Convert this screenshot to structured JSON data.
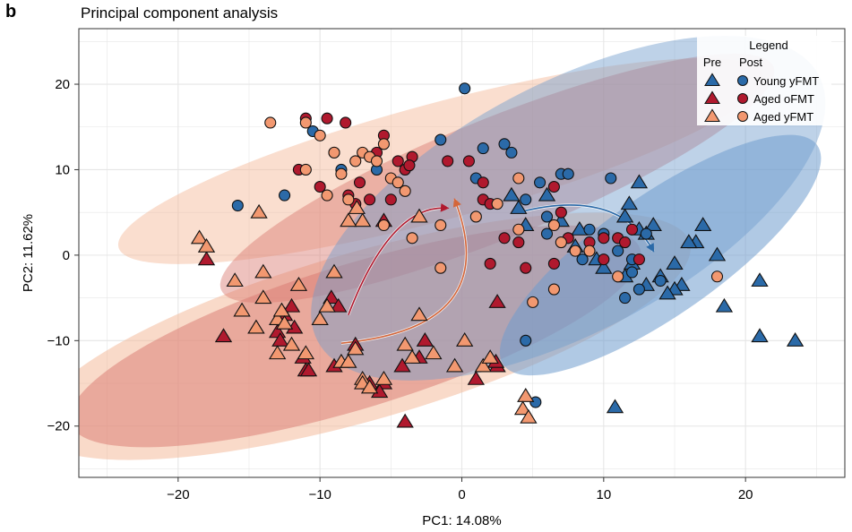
{
  "panel_letter": "b",
  "colors": {
    "young": "#2b6aa8",
    "aged_ofmt": "#b0192e",
    "aged_yfmt": "#f29870",
    "ellipse_young": "#6f9ccd",
    "ellipse_aged_ofmt": "#d9786f",
    "ellipse_aged_yfmt": "#f4b594",
    "grid": "#e6e6e6",
    "panel_border": "#333333"
  },
  "chart_data": {
    "type": "scatter",
    "title": "Principal component analysis",
    "xlabel": "PC1: 14.08%",
    "ylabel": "PC2: 11.62%",
    "xlim": [
      -27,
      27
    ],
    "ylim": [
      -26,
      26.5
    ],
    "xticks": [
      -20,
      -10,
      0,
      10,
      20
    ],
    "yticks": [
      -20,
      -10,
      0,
      10,
      20
    ],
    "xtick_labels": [
      "−20",
      "−10",
      "0",
      "10",
      "20"
    ],
    "ytick_labels": [
      "−20",
      "−10",
      "0",
      "10",
      "20"
    ],
    "grid": true,
    "legend": {
      "title": "Legend",
      "col_pre": "Pre",
      "col_post": "Post",
      "position": "top-right",
      "entries": [
        {
          "label": "Young yFMT",
          "group": "young"
        },
        {
          "label": "Aged oFMT",
          "group": "aged_ofmt"
        },
        {
          "label": "Aged yFMT",
          "group": "aged_yfmt"
        }
      ]
    },
    "ellipses": [
      {
        "group": "aged_yfmt",
        "phase": "pre",
        "cx": -7.0,
        "cy": -9.5,
        "rx": 24.0,
        "ry": 9.8,
        "angle": -16,
        "opacity": 0.5
      },
      {
        "group": "aged_yfmt",
        "phase": "post",
        "cx": -1.5,
        "cy": 11.0,
        "rx": 23.5,
        "ry": 6.8,
        "angle": -15,
        "opacity": 0.45
      },
      {
        "group": "aged_ofmt",
        "phase": "post",
        "cx": 2.5,
        "cy": 9.0,
        "rx": 21.0,
        "ry": 7.0,
        "angle": -22,
        "opacity": 0.45
      },
      {
        "group": "aged_ofmt",
        "phase": "pre",
        "cx": -7.5,
        "cy": -9.5,
        "rx": 21.0,
        "ry": 8.4,
        "angle": -17,
        "opacity": 0.5
      },
      {
        "group": "young",
        "phase": "post",
        "cx": 7.5,
        "cy": 5.5,
        "rx": 20.0,
        "ry": 14.5,
        "angle": -28,
        "opacity": 0.45
      },
      {
        "group": "young",
        "phase": "pre",
        "cx": 14.0,
        "cy": 0.0,
        "rx": 13.5,
        "ry": 7.0,
        "angle": -35,
        "opacity": 0.55
      }
    ],
    "arrows": [
      {
        "group": "aged_ofmt",
        "from": [
          -8.0,
          -7.0
        ],
        "ctrl": [
          -5.0,
          6.0
        ],
        "to": [
          -1.0,
          5.5
        ]
      },
      {
        "group": "aged_yfmt",
        "from": [
          -8.5,
          -10.3
        ],
        "ctrl": [
          3.0,
          -8.5
        ],
        "to": [
          -0.5,
          6.5
        ]
      },
      {
        "group": "young",
        "from": [
          4.0,
          5.0
        ],
        "ctrl": [
          11.0,
          8.0
        ],
        "to": [
          13.5,
          0.5
        ]
      }
    ],
    "series": [
      {
        "name": "Young yFMT",
        "group": "young",
        "phase": "pre",
        "marker": "triangle",
        "points": [
          [
            6.0,
            7.0
          ],
          [
            7.0,
            4.0
          ],
          [
            8.3,
            3.0
          ],
          [
            8.0,
            1.0
          ],
          [
            9.5,
            -0.5
          ],
          [
            10.0,
            -1.5
          ],
          [
            11.8,
            6.0
          ],
          [
            12.5,
            8.5
          ],
          [
            11.5,
            4.5
          ],
          [
            12.5,
            3.0
          ],
          [
            13.0,
            2.5
          ],
          [
            13.5,
            3.5
          ],
          [
            14.0,
            -2.5
          ],
          [
            15.0,
            -1.0
          ],
          [
            16.5,
            1.5
          ],
          [
            17.0,
            3.5
          ],
          [
            16.0,
            1.5
          ],
          [
            18.0,
            0.0
          ],
          [
            15.5,
            -3.5
          ],
          [
            15.0,
            -4.0
          ],
          [
            14.5,
            -4.5
          ],
          [
            13.0,
            -3.5
          ],
          [
            12.0,
            -1.0
          ],
          [
            11.5,
            -2.5
          ],
          [
            18.5,
            -6.0
          ],
          [
            21.0,
            -3.0
          ],
          [
            21.0,
            -9.5
          ],
          [
            23.5,
            -10.0
          ],
          [
            10.8,
            -17.8
          ],
          [
            4.0,
            5.5
          ],
          [
            4.5,
            3.5
          ],
          [
            3.5,
            7.0
          ]
        ]
      },
      {
        "name": "Young yFMT",
        "group": "young",
        "phase": "post",
        "marker": "circle",
        "points": [
          [
            0.2,
            19.5
          ],
          [
            -1.5,
            13.5
          ],
          [
            1.5,
            12.5
          ],
          [
            3.0,
            13.0
          ],
          [
            3.5,
            12.0
          ],
          [
            -10.5,
            14.5
          ],
          [
            -12.5,
            7.0
          ],
          [
            -15.8,
            5.8
          ],
          [
            -8.5,
            10.0
          ],
          [
            -6.0,
            10.0
          ],
          [
            1.0,
            9.0
          ],
          [
            4.5,
            6.5
          ],
          [
            5.5,
            8.5
          ],
          [
            7.0,
            9.5
          ],
          [
            7.5,
            9.5
          ],
          [
            10.5,
            9.0
          ],
          [
            6.0,
            4.5
          ],
          [
            9.0,
            3.0
          ],
          [
            10.0,
            2.5
          ],
          [
            11.0,
            0.5
          ],
          [
            12.0,
            -0.5
          ],
          [
            12.0,
            -2.0
          ],
          [
            12.5,
            -4.0
          ],
          [
            11.5,
            -5.0
          ],
          [
            13.0,
            2.5
          ],
          [
            14.0,
            -3.0
          ],
          [
            8.5,
            -0.5
          ],
          [
            6.0,
            2.5
          ],
          [
            4.5,
            -10.0
          ],
          [
            5.2,
            -17.2
          ]
        ]
      },
      {
        "name": "Aged oFMT",
        "group": "aged_ofmt",
        "phase": "pre",
        "marker": "triangle",
        "points": [
          [
            -18.0,
            -0.5
          ],
          [
            -16.8,
            -9.5
          ],
          [
            -14.5,
            -8.5
          ],
          [
            -13.0,
            -9.0
          ],
          [
            -12.8,
            -10.0
          ],
          [
            -12.5,
            -7.0
          ],
          [
            -12.0,
            -6.0
          ],
          [
            -11.8,
            -8.5
          ],
          [
            -11.2,
            -12.0
          ],
          [
            -11.0,
            -13.5
          ],
          [
            -10.8,
            -13.5
          ],
          [
            -9.2,
            -5.0
          ],
          [
            -8.7,
            -6.0
          ],
          [
            -9.0,
            -13.0
          ],
          [
            -7.5,
            -10.5
          ],
          [
            -6.5,
            -15.0
          ],
          [
            -5.5,
            -15.0
          ],
          [
            -5.8,
            -16.0
          ],
          [
            -4.2,
            -13.0
          ],
          [
            -4.0,
            -19.5
          ],
          [
            -3.0,
            -12.0
          ],
          [
            -2.6,
            -10.0
          ],
          [
            -5.5,
            4.0
          ],
          [
            1.0,
            -14.5
          ],
          [
            2.5,
            -5.5
          ],
          [
            2.5,
            -13.0
          ],
          [
            2.4,
            -12.5
          ]
        ]
      },
      {
        "name": "Aged oFMT",
        "group": "aged_ofmt",
        "phase": "post",
        "marker": "circle",
        "points": [
          [
            -11.0,
            16.0
          ],
          [
            -9.5,
            16.0
          ],
          [
            -8.2,
            15.5
          ],
          [
            -7.2,
            8.5
          ],
          [
            -8.0,
            7.0
          ],
          [
            -7.5,
            6.0
          ],
          [
            -6.5,
            6.5
          ],
          [
            -5.0,
            6.5
          ],
          [
            -6.0,
            12.0
          ],
          [
            -5.5,
            14.0
          ],
          [
            -4.5,
            11.0
          ],
          [
            -4.0,
            10.0
          ],
          [
            -3.5,
            11.5
          ],
          [
            -3.7,
            10.5
          ],
          [
            -1.0,
            11.0
          ],
          [
            0.5,
            11.0
          ],
          [
            1.5,
            8.5
          ],
          [
            1.5,
            6.5
          ],
          [
            2.0,
            6.0
          ],
          [
            3.0,
            2.0
          ],
          [
            4.0,
            1.5
          ],
          [
            6.5,
            8.0
          ],
          [
            7.0,
            5.0
          ],
          [
            7.5,
            2.0
          ],
          [
            9.0,
            1.5
          ],
          [
            10.0,
            2.0
          ],
          [
            10.0,
            -0.5
          ],
          [
            11.0,
            2.0
          ],
          [
            12.0,
            3.0
          ],
          [
            11.5,
            1.5
          ],
          [
            12.5,
            -0.5
          ],
          [
            2.0,
            -1.0
          ],
          [
            4.5,
            -1.5
          ],
          [
            6.5,
            -1.0
          ],
          [
            -10.0,
            8.0
          ],
          [
            -11.5,
            10.0
          ],
          [
            -9.0,
            12.0
          ]
        ]
      },
      {
        "name": "Aged yFMT",
        "group": "aged_yfmt",
        "phase": "pre",
        "marker": "triangle",
        "points": [
          [
            -18.5,
            2.0
          ],
          [
            -18.0,
            1.0
          ],
          [
            -16.0,
            -3.0
          ],
          [
            -15.5,
            -6.5
          ],
          [
            -14.3,
            5.0
          ],
          [
            -14.5,
            -8.5
          ],
          [
            -14.0,
            -2.0
          ],
          [
            -14.0,
            -5.0
          ],
          [
            -13.0,
            -7.5
          ],
          [
            -12.7,
            -6.5
          ],
          [
            -12.5,
            -8.0
          ],
          [
            -13.0,
            -11.5
          ],
          [
            -12.0,
            -10.5
          ],
          [
            -11.5,
            -3.5
          ],
          [
            -11.0,
            -11.5
          ],
          [
            -10.0,
            -7.5
          ],
          [
            -9.5,
            -6.0
          ],
          [
            -9.0,
            -2.0
          ],
          [
            -8.5,
            -12.5
          ],
          [
            -8.0,
            -12.5
          ],
          [
            -7.5,
            -11.0
          ],
          [
            -7.0,
            -14.5
          ],
          [
            -7.0,
            -15.0
          ],
          [
            -6.5,
            -15.5
          ],
          [
            -5.5,
            -14.5
          ],
          [
            -4.0,
            -10.5
          ],
          [
            -3.5,
            -12.0
          ],
          [
            -3.0,
            -7.0
          ],
          [
            -2.0,
            -11.5
          ],
          [
            -0.5,
            -13.0
          ],
          [
            0.2,
            -10.0
          ],
          [
            1.5,
            -13.0
          ],
          [
            2.0,
            -12.0
          ],
          [
            -3.0,
            4.5
          ],
          [
            -7.0,
            4.0
          ],
          [
            -8.0,
            4.0
          ],
          [
            4.5,
            -16.5
          ],
          [
            4.3,
            -18.0
          ],
          [
            4.7,
            -19.0
          ],
          [
            -7.4,
            5.5
          ]
        ]
      },
      {
        "name": "Aged yFMT",
        "group": "aged_yfmt",
        "phase": "post",
        "marker": "circle",
        "points": [
          [
            -13.5,
            15.5
          ],
          [
            -11.0,
            15.5
          ],
          [
            -10.0,
            14.0
          ],
          [
            -9.0,
            12.0
          ],
          [
            -7.5,
            11.0
          ],
          [
            -7.0,
            12.0
          ],
          [
            -6.5,
            11.5
          ],
          [
            -6.0,
            11.0
          ],
          [
            -5.5,
            13.0
          ],
          [
            -5.0,
            9.0
          ],
          [
            -4.5,
            8.5
          ],
          [
            -4.0,
            7.5
          ],
          [
            -11.0,
            10.0
          ],
          [
            -8.5,
            9.5
          ],
          [
            -9.5,
            7.0
          ],
          [
            -8.0,
            6.5
          ],
          [
            -5.5,
            3.5
          ],
          [
            -3.5,
            2.0
          ],
          [
            -1.5,
            3.5
          ],
          [
            1.0,
            4.5
          ],
          [
            2.5,
            6.0
          ],
          [
            4.0,
            9.0
          ],
          [
            4.0,
            3.0
          ],
          [
            6.5,
            3.5
          ],
          [
            7.0,
            1.5
          ],
          [
            8.0,
            0.5
          ],
          [
            9.0,
            0.5
          ],
          [
            11.0,
            -2.5
          ],
          [
            6.5,
            -4.0
          ],
          [
            5.0,
            -5.5
          ],
          [
            18.0,
            -2.5
          ],
          [
            -1.5,
            -1.5
          ]
        ]
      }
    ]
  }
}
